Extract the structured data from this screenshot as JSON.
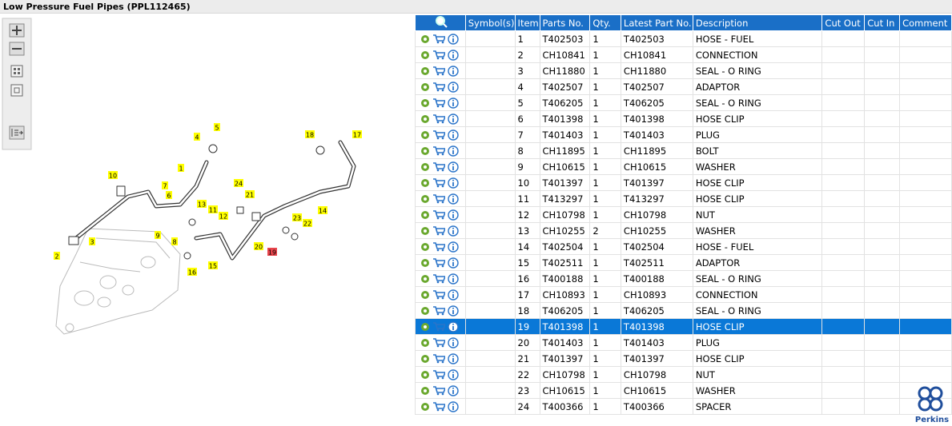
{
  "header": {
    "title": "Low Pressure Fuel Pipes (PPL112465)"
  },
  "diagram": {
    "callouts": [
      "1",
      "2",
      "3",
      "4",
      "5",
      "6",
      "7",
      "8",
      "9",
      "10",
      "11",
      "12",
      "13",
      "14",
      "15",
      "16",
      "17",
      "18",
      "19",
      "20",
      "21",
      "22",
      "23",
      "24"
    ]
  },
  "table": {
    "columns": [
      "Symbol(s)",
      "Item",
      "Parts No.",
      "Qty.",
      "Latest Part No.",
      "Description",
      "Cut Out",
      "Cut In",
      "Comment"
    ],
    "selected_item": 19,
    "rows": [
      [
        1,
        "T402503",
        1,
        "T402503",
        "HOSE - FUEL"
      ],
      [
        2,
        "CH10841",
        1,
        "CH10841",
        "CONNECTION"
      ],
      [
        3,
        "CH11880",
        1,
        "CH11880",
        "SEAL - O RING"
      ],
      [
        4,
        "T402507",
        1,
        "T402507",
        "ADAPTOR"
      ],
      [
        5,
        "T406205",
        1,
        "T406205",
        "SEAL - O RING"
      ],
      [
        6,
        "T401398",
        1,
        "T401398",
        "HOSE CLIP"
      ],
      [
        7,
        "T401403",
        1,
        "T401403",
        "PLUG"
      ],
      [
        8,
        "CH11895",
        1,
        "CH11895",
        "BOLT"
      ],
      [
        9,
        "CH10615",
        1,
        "CH10615",
        "WASHER"
      ],
      [
        10,
        "T401397",
        1,
        "T401397",
        "HOSE CLIP"
      ],
      [
        11,
        "T413297",
        1,
        "T413297",
        "HOSE CLIP"
      ],
      [
        12,
        "CH10798",
        1,
        "CH10798",
        "NUT"
      ],
      [
        13,
        "CH10255",
        2,
        "CH10255",
        "WASHER"
      ],
      [
        14,
        "T402504",
        1,
        "T402504",
        "HOSE - FUEL"
      ],
      [
        15,
        "T402511",
        1,
        "T402511",
        "ADAPTOR"
      ],
      [
        16,
        "T400188",
        1,
        "T400188",
        "SEAL - O RING"
      ],
      [
        17,
        "CH10893",
        1,
        "CH10893",
        "CONNECTION"
      ],
      [
        18,
        "T406205",
        1,
        "T406205",
        "SEAL - O RING"
      ],
      [
        19,
        "T401398",
        1,
        "T401398",
        "HOSE CLIP"
      ],
      [
        20,
        "T401403",
        1,
        "T401403",
        "PLUG"
      ],
      [
        21,
        "T401397",
        1,
        "T401397",
        "HOSE CLIP"
      ],
      [
        22,
        "CH10798",
        1,
        "CH10798",
        "NUT"
      ],
      [
        23,
        "CH10615",
        1,
        "CH10615",
        "WASHER"
      ],
      [
        24,
        "T400366",
        1,
        "T400366",
        "SPACER"
      ]
    ]
  },
  "logo": {
    "text": "Perkins"
  }
}
